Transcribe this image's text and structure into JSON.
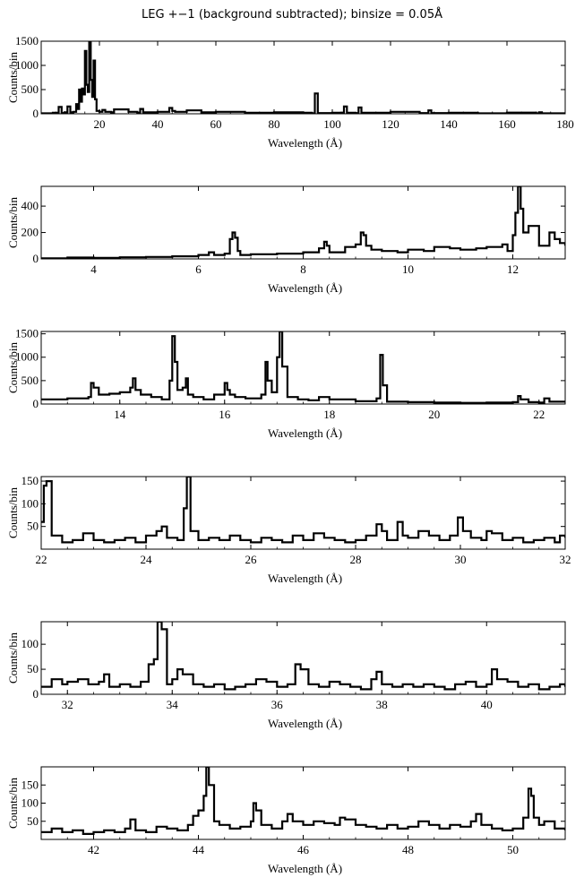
{
  "title": "LEG +−1 (background subtracted); binsize = 0.05Å",
  "chart_data": [
    {
      "type": "line",
      "style": "histogram-step",
      "xlabel": "Wavelength (Å)",
      "ylabel": "Counts/bin",
      "xlim": [
        0,
        180
      ],
      "ylim": [
        0,
        1500
      ],
      "xticks": [
        20,
        40,
        60,
        80,
        100,
        120,
        140,
        160,
        180
      ],
      "yticks": [
        0,
        500,
        1000,
        1500
      ],
      "x": [
        0,
        4,
        6,
        7,
        8,
        9,
        10,
        11,
        12,
        12.5,
        13,
        13.5,
        14,
        14.5,
        15,
        15.5,
        16,
        16.5,
        17,
        17.5,
        18,
        18.5,
        19,
        20,
        21,
        22,
        24,
        25,
        30,
        33,
        34,
        35,
        40,
        44,
        45,
        46,
        50,
        55,
        60,
        70,
        80,
        90,
        93,
        94,
        95,
        100,
        103,
        104,
        105,
        108,
        109,
        110,
        120,
        130,
        133,
        134,
        140,
        150,
        160,
        170,
        171,
        172,
        180
      ],
      "y": [
        10,
        20,
        140,
        15,
        30,
        150,
        30,
        40,
        200,
        100,
        500,
        250,
        520,
        400,
        1300,
        600,
        450,
        1500,
        700,
        350,
        1100,
        300,
        60,
        40,
        80,
        40,
        30,
        90,
        40,
        25,
        100,
        30,
        40,
        120,
        60,
        40,
        70,
        30,
        40,
        20,
        30,
        20,
        10,
        420,
        15,
        20,
        25,
        150,
        20,
        15,
        130,
        20,
        40,
        15,
        70,
        15,
        20,
        10,
        25,
        10,
        30,
        10,
        10
      ]
    },
    {
      "type": "line",
      "style": "histogram-step",
      "xlabel": "Wavelength (Å)",
      "ylabel": "Counts/bin",
      "xlim": [
        3,
        13
      ],
      "ylim": [
        0,
        550
      ],
      "xticks": [
        4,
        6,
        8,
        10,
        12
      ],
      "yticks": [
        0,
        200,
        400
      ],
      "x": [
        3,
        3.5,
        4,
        4.5,
        5,
        5.5,
        6,
        6.2,
        6.3,
        6.5,
        6.6,
        6.65,
        6.7,
        6.75,
        6.8,
        7,
        7.5,
        8,
        8.3,
        8.4,
        8.45,
        8.5,
        8.8,
        9,
        9.1,
        9.15,
        9.2,
        9.3,
        9.5,
        9.8,
        10,
        10.3,
        10.5,
        10.8,
        11,
        11.3,
        11.5,
        11.8,
        11.9,
        12,
        12.05,
        12.1,
        12.15,
        12.2,
        12.3,
        12.5,
        12.7,
        12.8,
        12.9,
        13
      ],
      "y": [
        5,
        10,
        8,
        12,
        15,
        20,
        30,
        50,
        30,
        40,
        150,
        200,
        160,
        60,
        30,
        35,
        40,
        50,
        80,
        130,
        100,
        50,
        90,
        110,
        200,
        180,
        100,
        70,
        60,
        50,
        70,
        60,
        90,
        80,
        70,
        80,
        90,
        110,
        60,
        180,
        350,
        550,
        380,
        200,
        250,
        100,
        200,
        150,
        120,
        100
      ]
    },
    {
      "type": "line",
      "style": "histogram-step",
      "xlabel": "Wavelength (Å)",
      "ylabel": "Counts/bin",
      "xlim": [
        12.5,
        22.5
      ],
      "ylim": [
        0,
        1550
      ],
      "xticks": [
        14,
        16,
        18,
        20,
        22
      ],
      "yticks": [
        0,
        500,
        1000,
        1500
      ],
      "x": [
        12.5,
        13,
        13.4,
        13.45,
        13.5,
        13.6,
        13.8,
        14,
        14.2,
        14.25,
        14.3,
        14.4,
        14.6,
        14.8,
        14.95,
        15.0,
        15.05,
        15.1,
        15.2,
        15.26,
        15.3,
        15.4,
        15.6,
        15.8,
        16,
        16.05,
        16.1,
        16.2,
        16.4,
        16.7,
        16.78,
        16.82,
        16.9,
        17.0,
        17.05,
        17.1,
        17.2,
        17.4,
        17.6,
        17.8,
        18,
        18.5,
        18.9,
        18.97,
        19.02,
        19.1,
        19.5,
        20,
        20.5,
        21,
        21.5,
        21.6,
        21.65,
        21.8,
        22,
        22.1,
        22.2,
        22.5
      ],
      "y": [
        100,
        120,
        150,
        450,
        350,
        200,
        220,
        250,
        350,
        550,
        300,
        200,
        150,
        100,
        500,
        1450,
        900,
        300,
        350,
        550,
        200,
        150,
        100,
        200,
        450,
        300,
        200,
        150,
        120,
        200,
        900,
        500,
        250,
        1000,
        1550,
        800,
        150,
        100,
        80,
        150,
        100,
        60,
        120,
        1050,
        400,
        50,
        40,
        30,
        25,
        30,
        40,
        170,
        100,
        40,
        30,
        120,
        50,
        40
      ]
    },
    {
      "type": "line",
      "style": "histogram-step",
      "xlabel": "Wavelength (Å)",
      "ylabel": "Counts/bin",
      "xlim": [
        22,
        32
      ],
      "ylim": [
        0,
        160
      ],
      "xticks": [
        22,
        24,
        26,
        28,
        30,
        32
      ],
      "yticks": [
        50,
        100,
        150
      ],
      "x": [
        22,
        22.05,
        22.1,
        22.2,
        22.4,
        22.6,
        22.8,
        23,
        23.2,
        23.4,
        23.6,
        23.8,
        24,
        24.2,
        24.3,
        24.4,
        24.6,
        24.72,
        24.78,
        24.85,
        25,
        25.2,
        25.4,
        25.6,
        25.8,
        26,
        26.2,
        26.4,
        26.6,
        26.8,
        27,
        27.2,
        27.4,
        27.6,
        27.8,
        28,
        28.2,
        28.4,
        28.5,
        28.6,
        28.8,
        28.9,
        29,
        29.2,
        29.4,
        29.6,
        29.8,
        29.95,
        30.05,
        30.2,
        30.4,
        30.5,
        30.6,
        30.8,
        31,
        31.2,
        31.4,
        31.6,
        31.8,
        31.9,
        32
      ],
      "y": [
        60,
        140,
        150,
        30,
        15,
        20,
        35,
        20,
        15,
        20,
        25,
        15,
        30,
        40,
        50,
        25,
        20,
        90,
        160,
        40,
        20,
        25,
        20,
        30,
        20,
        15,
        25,
        20,
        15,
        30,
        20,
        35,
        25,
        20,
        15,
        20,
        30,
        55,
        40,
        20,
        60,
        30,
        25,
        40,
        30,
        20,
        30,
        70,
        40,
        25,
        20,
        40,
        35,
        20,
        25,
        15,
        20,
        25,
        15,
        30,
        25
      ]
    },
    {
      "type": "line",
      "style": "histogram-step",
      "xlabel": "Wavelength (Å)",
      "ylabel": "Counts/bin",
      "xlim": [
        31.5,
        41.5
      ],
      "ylim": [
        0,
        145
      ],
      "xticks": [
        32,
        34,
        36,
        38,
        40
      ],
      "yticks": [
        0,
        50,
        100
      ],
      "x": [
        31.5,
        31.7,
        31.9,
        32,
        32.2,
        32.4,
        32.6,
        32.7,
        32.8,
        33,
        33.2,
        33.4,
        33.55,
        33.65,
        33.72,
        33.8,
        33.9,
        34,
        34.1,
        34.2,
        34.4,
        34.6,
        34.8,
        35,
        35.2,
        35.4,
        35.6,
        35.8,
        36,
        36.2,
        36.35,
        36.45,
        36.6,
        36.8,
        37,
        37.2,
        37.4,
        37.6,
        37.8,
        37.9,
        38,
        38.2,
        38.4,
        38.6,
        38.8,
        39,
        39.2,
        39.4,
        39.6,
        39.8,
        40,
        40.1,
        40.2,
        40.4,
        40.6,
        40.8,
        41,
        41.2,
        41.4,
        41.5
      ],
      "y": [
        15,
        30,
        20,
        25,
        30,
        20,
        25,
        40,
        15,
        20,
        15,
        25,
        60,
        70,
        145,
        130,
        20,
        30,
        50,
        40,
        20,
        15,
        20,
        10,
        15,
        20,
        30,
        25,
        15,
        20,
        60,
        50,
        20,
        15,
        25,
        20,
        15,
        10,
        30,
        45,
        20,
        15,
        20,
        15,
        20,
        15,
        10,
        20,
        25,
        15,
        20,
        50,
        30,
        25,
        15,
        20,
        10,
        15,
        20,
        15
      ]
    },
    {
      "type": "line",
      "style": "histogram-step",
      "xlabel": "Wavelength (Å)",
      "ylabel": "Counts/bin",
      "xlim": [
        41,
        51
      ],
      "ylim": [
        0,
        200
      ],
      "xticks": [
        42,
        44,
        46,
        48,
        50
      ],
      "yticks": [
        50,
        100,
        150
      ],
      "x": [
        41,
        41.2,
        41.4,
        41.6,
        41.8,
        42,
        42.2,
        42.4,
        42.6,
        42.7,
        42.8,
        43,
        43.2,
        43.4,
        43.6,
        43.8,
        43.9,
        44,
        44.1,
        44.15,
        44.2,
        44.3,
        44.4,
        44.6,
        44.8,
        45,
        45.05,
        45.1,
        45.2,
        45.4,
        45.6,
        45.7,
        45.8,
        46,
        46.2,
        46.4,
        46.6,
        46.7,
        46.8,
        47,
        47.2,
        47.4,
        47.6,
        47.8,
        48,
        48.2,
        48.4,
        48.6,
        48.8,
        49,
        49.2,
        49.3,
        49.4,
        49.6,
        49.8,
        50,
        50.2,
        50.3,
        50.35,
        50.4,
        50.5,
        50.6,
        50.8,
        51
      ],
      "y": [
        20,
        30,
        20,
        25,
        15,
        20,
        25,
        20,
        30,
        55,
        25,
        20,
        35,
        30,
        25,
        40,
        65,
        80,
        120,
        200,
        150,
        50,
        40,
        30,
        35,
        50,
        100,
        80,
        40,
        30,
        50,
        70,
        50,
        40,
        50,
        45,
        40,
        60,
        55,
        40,
        35,
        30,
        40,
        30,
        35,
        50,
        40,
        30,
        40,
        35,
        50,
        70,
        40,
        30,
        25,
        30,
        60,
        140,
        120,
        60,
        40,
        50,
        30,
        25
      ]
    }
  ]
}
